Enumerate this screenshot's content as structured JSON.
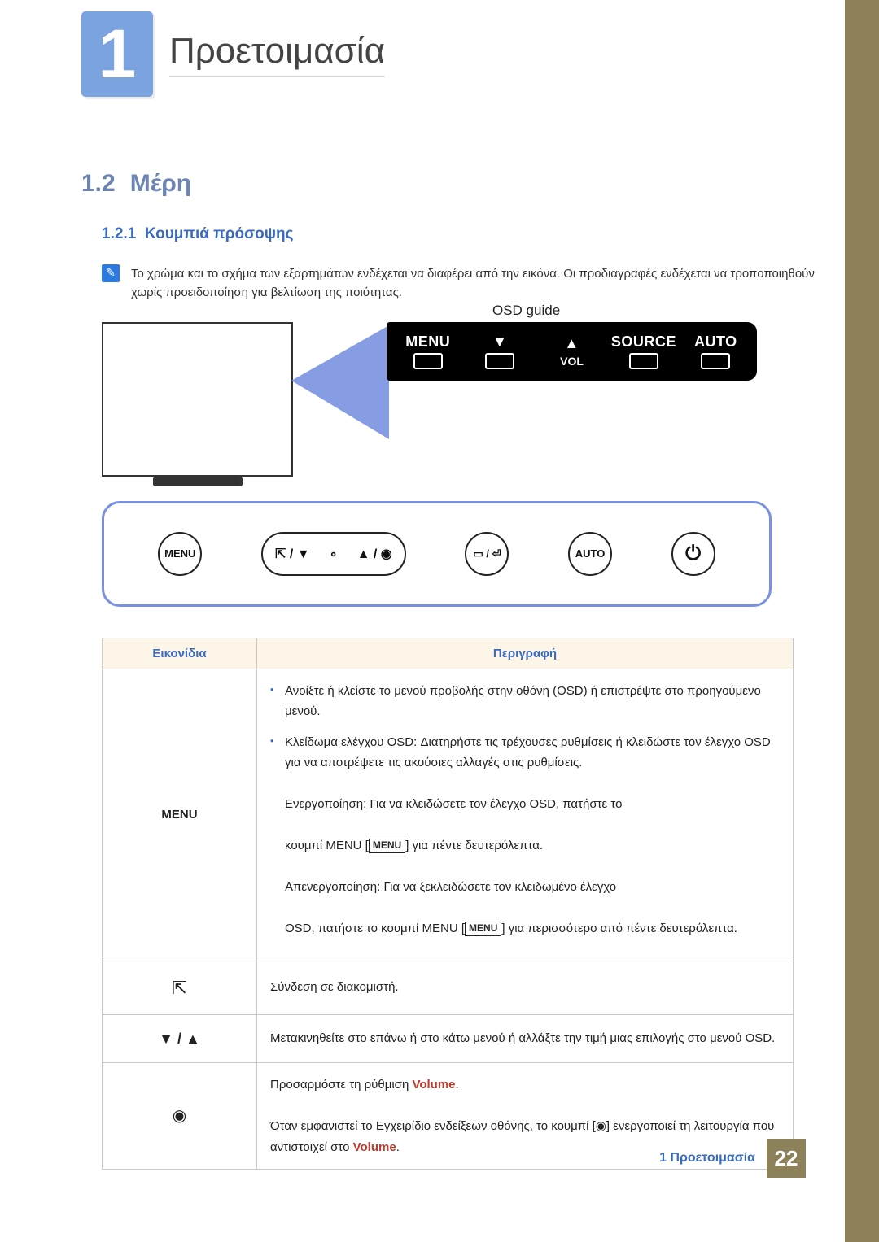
{
  "chapter": {
    "number": "1",
    "title": "Προετοιμασία"
  },
  "section": {
    "number": "1.2",
    "title": "Μέρη"
  },
  "subsection": {
    "number": "1.2.1",
    "title": "Κουμπιά πρόσοψης"
  },
  "note_text": "Το χρώμα και το σχήμα των εξαρτημάτων ενδέχεται να διαφέρει από την εικόνα. Οι προδιαγραφές ενδέχεται να τροποποιηθούν χωρίς προειδοποίηση για βελτίωση της ποιότητας.",
  "diagram": {
    "osd_label": "OSD guide",
    "osd_cells": {
      "menu": "MENU",
      "down": "▼",
      "vol": "VOL",
      "up": "▲",
      "source": "SOURCE",
      "auto": "AUTO"
    },
    "panel_buttons": {
      "menu": "MENU",
      "combo_left": "⇱ / ▼",
      "combo_mid": "∘",
      "combo_right": "▲ / ◉",
      "sourcebtn": "▭ / ⏎",
      "auto": "AUTO"
    }
  },
  "table": {
    "headers": {
      "icons": "Εικονίδια",
      "desc": "Περιγραφή"
    },
    "rows": {
      "menu": {
        "icon_label": "MENU",
        "bullet1": "Ανοίξτε ή κλείστε το μενού προβολής στην οθόνη (OSD) ή επιστρέψτε στο προηγούμενο μενού.",
        "bullet2a": "Κλείδωμα ελέγχου OSD: Διατηρήστε τις τρέχουσες ρυθμίσεις ή κλειδώστε τον έλεγχο OSD για να αποτρέψετε τις ακούσιες αλλαγές στις ρυθμίσεις.",
        "b2_l1a": "Ενεργοποίηση: Για να κλειδώσετε τον έλεγχο OSD, πατήστε το",
        "b2_l1b": "κουμπί MENU [",
        "b2_box": "MENU",
        "b2_l1c": "] για πέντε δευτερόλεπτα.",
        "b2_l2a": "Απενεργοποίηση: Για να ξεκλειδώσετε τον κλειδωμένο έλεγχο",
        "b2_l2b": "OSD, πατήστε το κουμπί MENU [",
        "b2_l2c": "] για περισσότερο από πέντε δευτερόλεπτα."
      },
      "connect": {
        "icon_glyph": "⇱",
        "text": "Σύνδεση σε διακομιστή."
      },
      "nav": {
        "icon_glyph": "▼ / ▲",
        "text": "Μετακινηθείτε στο επάνω ή στο κάτω μενού ή αλλάξτε την τιμή μιας επιλογής στο μενού OSD."
      },
      "vol": {
        "icon_glyph": "◉",
        "l1a": "Προσαρμόστε τη ρύθμιση ",
        "kw_volume": "Volume",
        "l1b": ".",
        "l2a": "Όταν εμφανιστεί το Εγχειρίδιο ενδείξεων οθόνης, το κουμπί [",
        "l2_glyph": "◉",
        "l2b": "] ενεργοποιεί τη λειτουργία που αντιστοιχεί στο ",
        "l2c": "."
      }
    }
  },
  "footer": {
    "text": "1 Προετοιμασία",
    "page": "22"
  },
  "colors": {
    "accent_blue": "#7aa3e0",
    "heading_blue": "#3a6bbd",
    "band": "#8c8159",
    "table_header_bg": "#fdf5e8",
    "keyword": "#c0392b"
  }
}
